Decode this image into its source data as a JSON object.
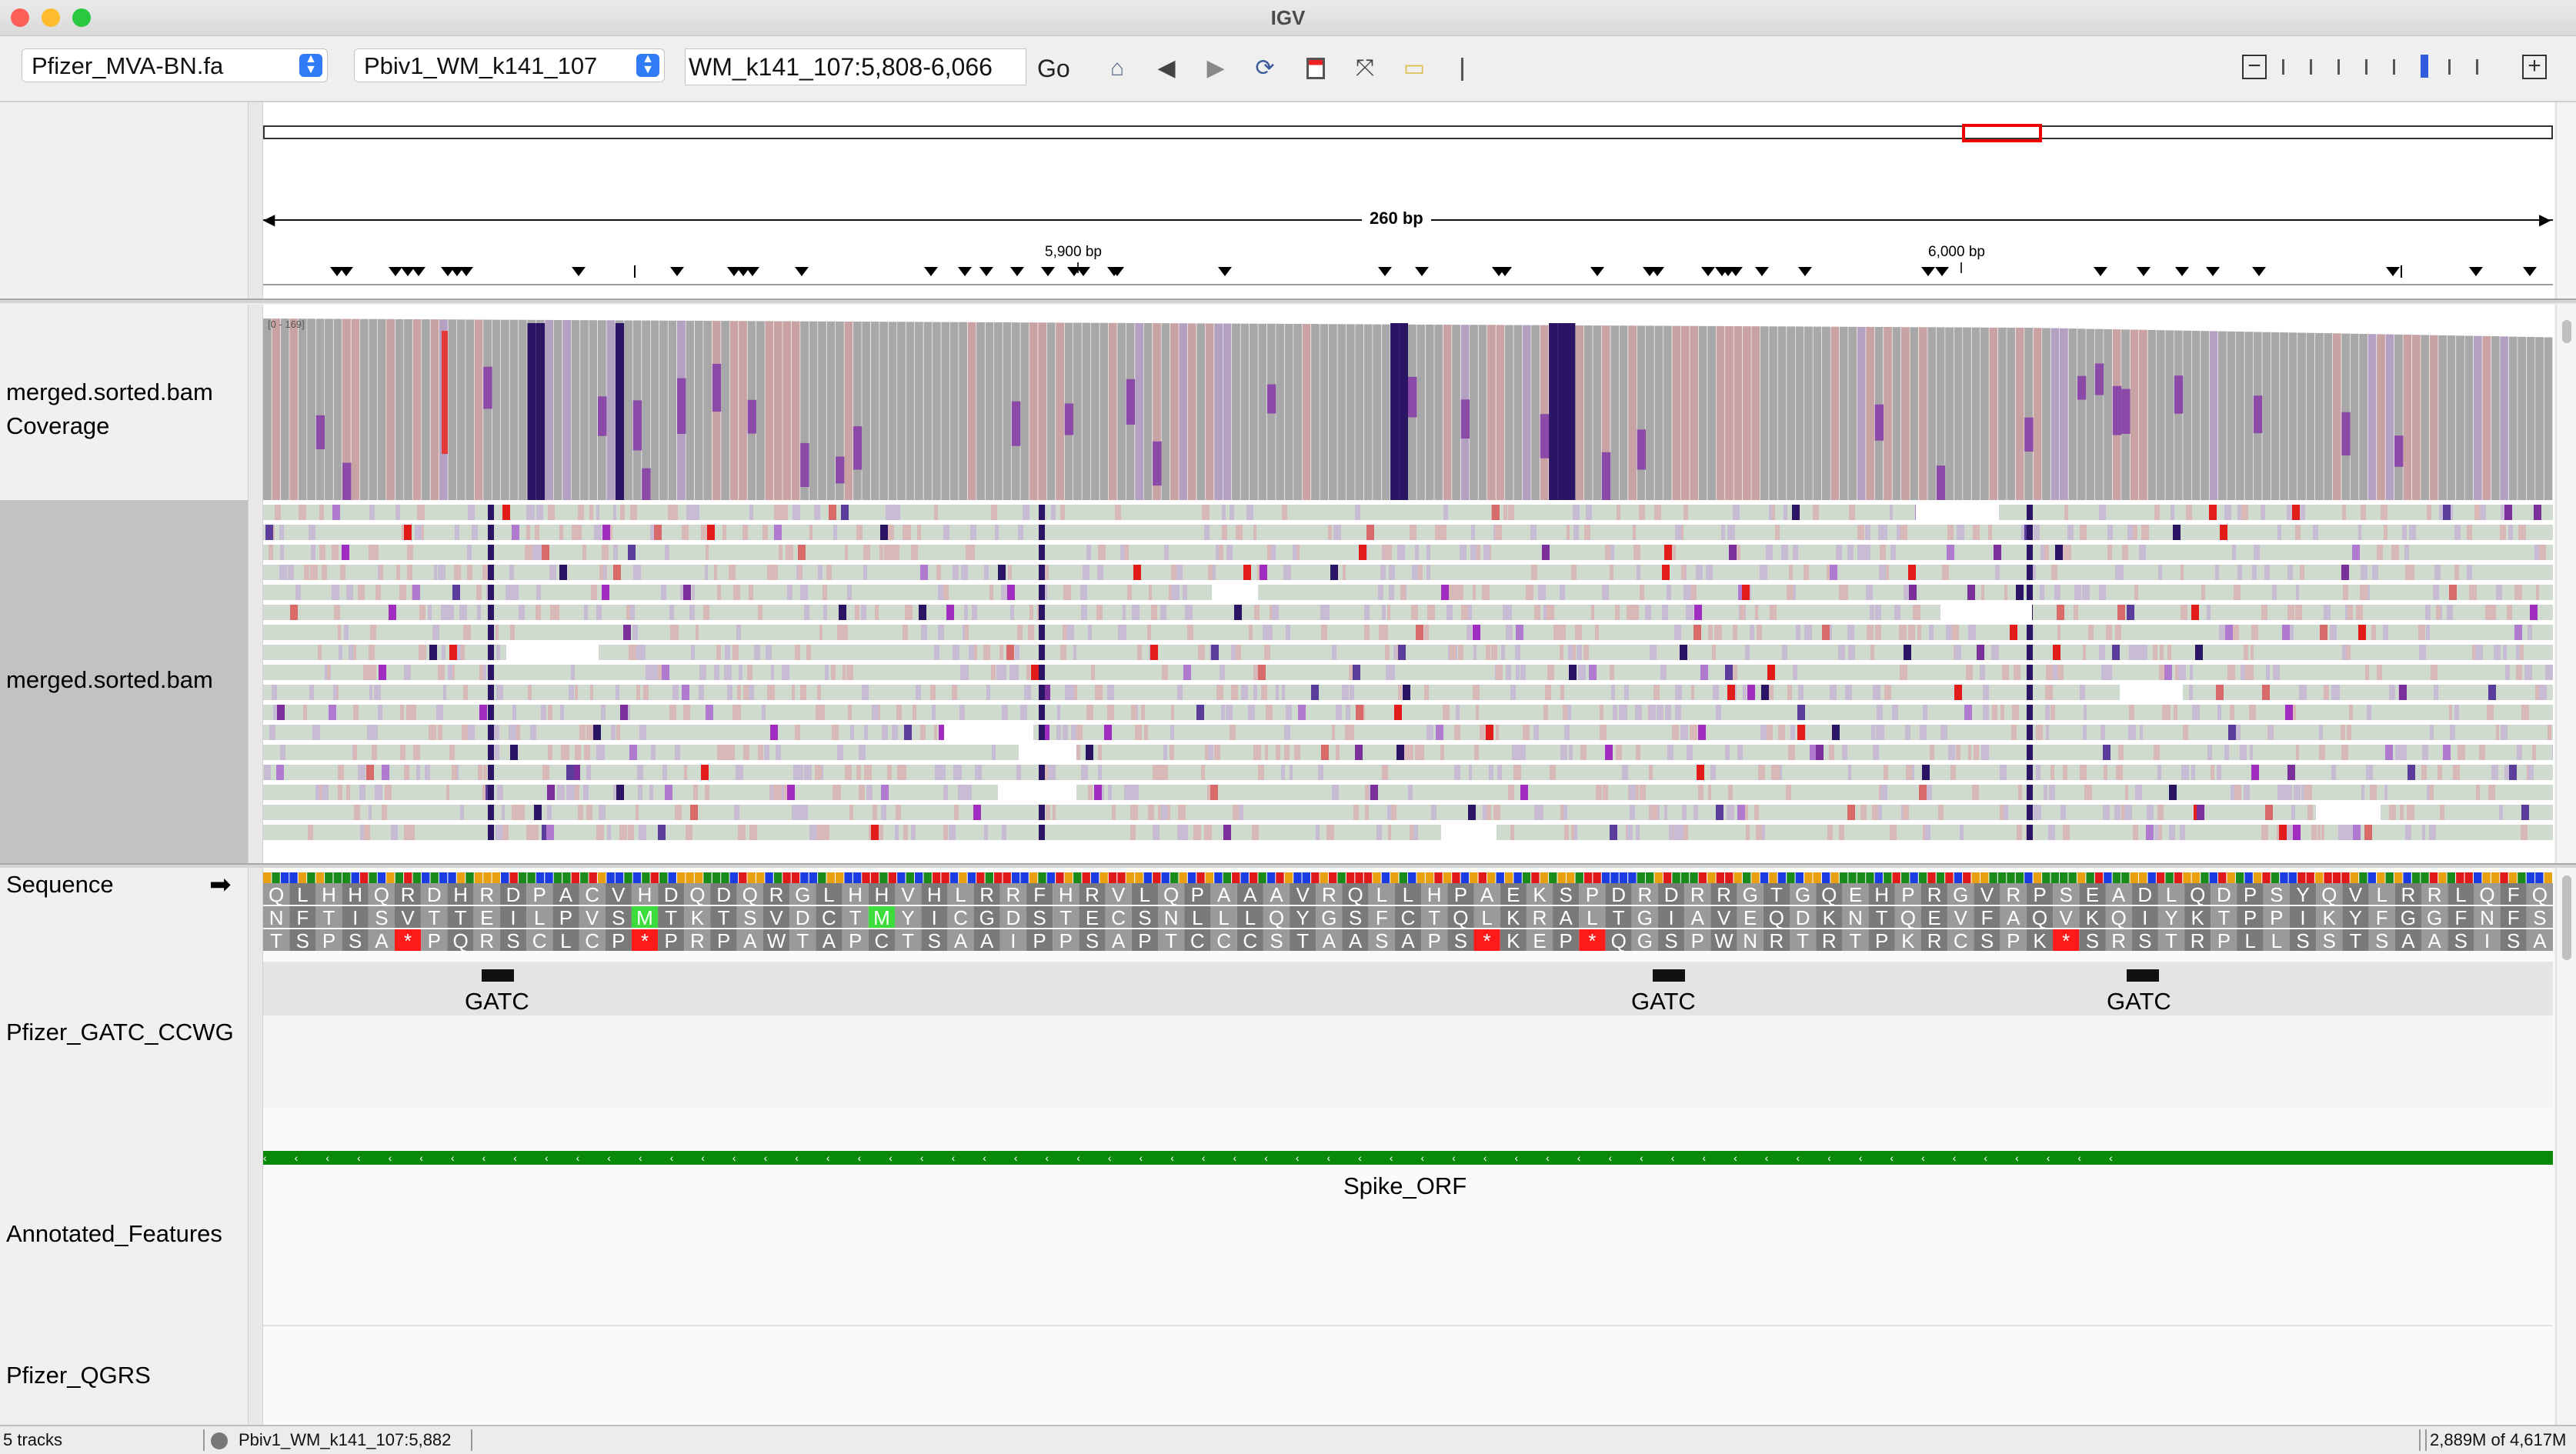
{
  "window": {
    "title": "IGV"
  },
  "toolbar": {
    "genome": "Pfizer_MVA-BN.fa",
    "chromosome": "Pbiv1_WM_k141_107",
    "locus": "WM_k141_107:5,808-6,066",
    "go_label": "Go",
    "icons": [
      "home-icon",
      "back-icon",
      "forward-icon",
      "refresh-icon",
      "region-of-interest-icon",
      "fit-to-window-icon",
      "popup-text-icon",
      "ruler-line-icon"
    ],
    "zoom_minus": "−",
    "zoom_plus": "+",
    "zoom_level_fraction": 0.8
  },
  "ruler": {
    "span_label": "260 bp",
    "tick_labels": [
      "5,900 bp",
      "6,000 bp"
    ]
  },
  "tracks": {
    "coverage_name": "merged.sorted.bam Coverage",
    "coverage_range": "[0 - 169]",
    "alignment_name": "merged.sorted.bam",
    "sequence_name": "Sequence",
    "sequence_arrow": "➡",
    "gatc_name": "Pfizer_GATC_CCWG",
    "annot_name": "Annotated_Features",
    "qgrs_name": "Pfizer_QGRS"
  },
  "translation": {
    "frame1": "QLHHQRDHRDPACVHDQDQRGLHHVHLRRFHRVLQPAAAVRQLLHPAEKSPDRDRRGTGQEHPRGVRPSEADLQDPSYQVLRRLQFQ",
    "frame2": "NFTISVTTEILPVSMTKTSVDCTMYICGDSTECSNLLLQYGSFCTQLKRALTGIAVEQDKNTQEVFAQVKQIYKTPPIKYFGGFNFS",
    "frame3": "TSPSA*PQRSCLCP*PRPAWTAPCTSAAIPPSAPTCCCSTAASAPS*KEP*QGSPWNRTRTPKRCSPK*SRSTRPLLSSTSAASISA"
  },
  "features": {
    "gatc_labels": [
      "GATC",
      "GATC",
      "GATC"
    ],
    "spike_label": "Spike_ORF",
    "colors": {
      "gatc": "#111111",
      "spike": "#0a8a0a",
      "start_codon": "#3ddc3d",
      "stop_codon": "#ff1a1a"
    }
  },
  "status": {
    "track_count": "5 tracks",
    "position": "Pbiv1_WM_k141_107:5,882",
    "memory": "2,889M of 4,617M"
  }
}
